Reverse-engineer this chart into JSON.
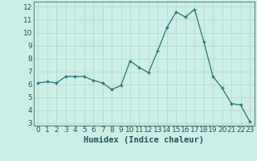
{
  "x": [
    0,
    1,
    2,
    3,
    4,
    5,
    6,
    7,
    8,
    9,
    10,
    11,
    12,
    13,
    14,
    15,
    16,
    17,
    18,
    19,
    20,
    21,
    22,
    23
  ],
  "y": [
    6.1,
    6.2,
    6.1,
    6.6,
    6.6,
    6.6,
    6.3,
    6.1,
    5.6,
    5.9,
    7.8,
    7.3,
    6.9,
    8.6,
    10.4,
    11.6,
    11.2,
    11.8,
    9.3,
    6.6,
    5.7,
    4.5,
    4.4,
    3.1
  ],
  "xlabel": "Humidex (Indice chaleur)",
  "ylim_min": 2.8,
  "ylim_max": 12.4,
  "xlim_min": -0.5,
  "xlim_max": 23.5,
  "yticks": [
    3,
    4,
    5,
    6,
    7,
    8,
    9,
    10,
    11,
    12
  ],
  "xticks": [
    0,
    1,
    2,
    3,
    4,
    5,
    6,
    7,
    8,
    9,
    10,
    11,
    12,
    13,
    14,
    15,
    16,
    17,
    18,
    19,
    20,
    21,
    22,
    23
  ],
  "line_color": "#1e7a6e",
  "marker_color": "#1e7a6e",
  "bg_color": "#cceee8",
  "grid_color": "#b8d4ce",
  "xlabel_fontsize": 7.5,
  "tick_fontsize": 6.5,
  "fig_width": 3.2,
  "fig_height": 2.0,
  "dpi": 100
}
